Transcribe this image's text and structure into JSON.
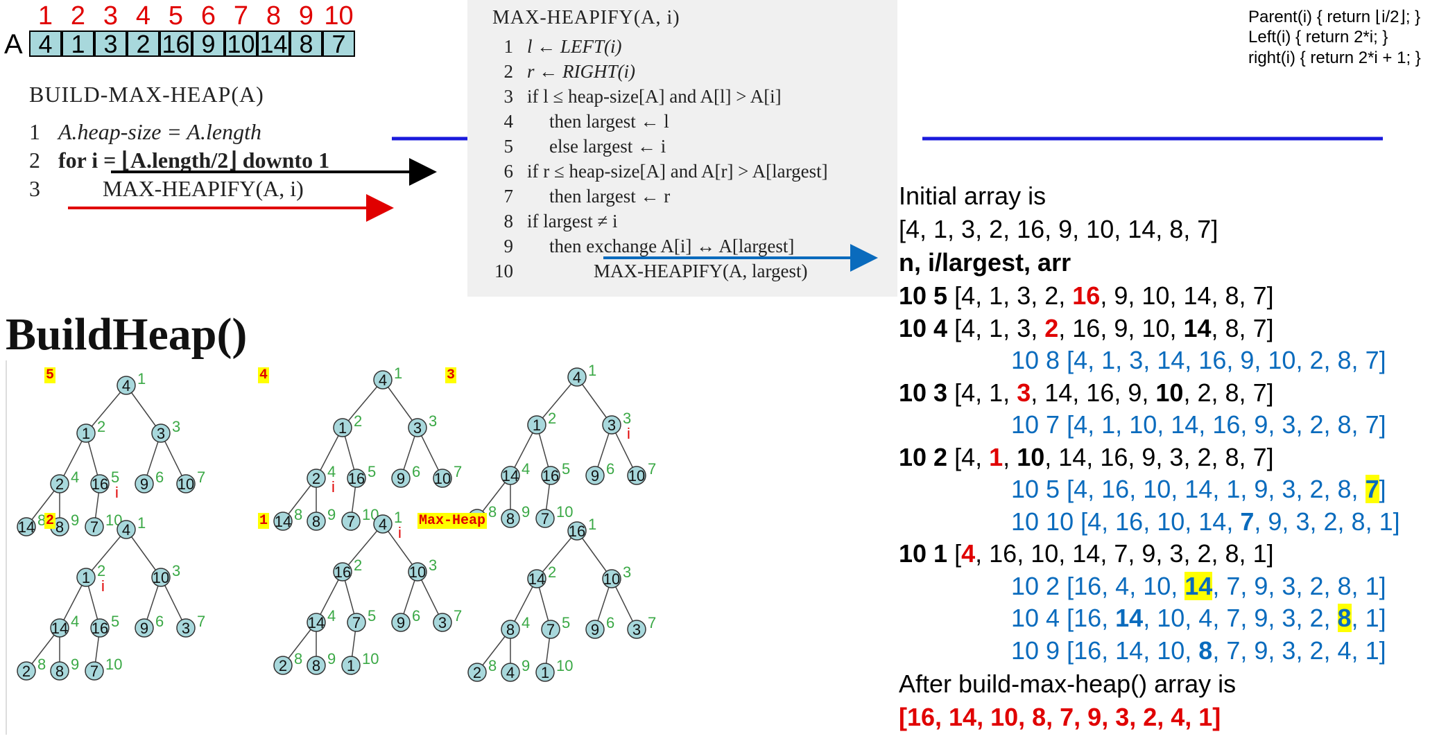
{
  "array": {
    "label": "A",
    "indices": [
      "1",
      "2",
      "3",
      "4",
      "5",
      "6",
      "7",
      "8",
      "9",
      "10"
    ],
    "values": [
      "4",
      "1",
      "3",
      "2",
      "16",
      "9",
      "10",
      "14",
      "8",
      "7"
    ]
  },
  "build_max_heap": {
    "title": "BUILD-MAX-HEAP(A)",
    "lines": [
      {
        "num": "1",
        "text": "A.heap-size = A.length"
      },
      {
        "num": "2",
        "text": "for i = ⌊A.length/2⌋ downto 1"
      },
      {
        "num": "3",
        "text": "MAX-HEAPIFY(A, i)"
      }
    ]
  },
  "max_heapify": {
    "title": "MAX-HEAPIFY(A, i)",
    "lines": [
      {
        "num": "1",
        "text": "l ← LEFT(i)"
      },
      {
        "num": "2",
        "text": "r ← RIGHT(i)"
      },
      {
        "num": "3",
        "text": "if l ≤ heap-size[A] and A[l] > A[i]"
      },
      {
        "num": "4",
        "text": "then largest ← l"
      },
      {
        "num": "5",
        "text": "else  largest ← i"
      },
      {
        "num": "6",
        "text": "if r ≤ heap-size[A] and A[r] > A[largest]"
      },
      {
        "num": "7",
        "text": "then largest ← r"
      },
      {
        "num": "8",
        "text": "if largest ≠ i"
      },
      {
        "num": "9",
        "text": "then exchange A[i] ↔ A[largest]"
      },
      {
        "num": "10",
        "text": "MAX-HEAPIFY(A, largest)"
      }
    ]
  },
  "defs": [
    "Parent(i) { return ⌊i/2⌋; }",
    "Left(i) { return 2*i; }",
    "right(i) { return 2*i + 1; }"
  ],
  "buildheap_title": "BuildHeap()",
  "trace": {
    "intro": "Initial array is",
    "initial": "[4, 1, 3, 2, 16, 9, 10, 14, 8, 7]",
    "header": "n, i/largest, arr",
    "outro": "After build-max-heap() array is",
    "result": "[16, 14, 10, 8, 7, 9, 3, 2, 4, 1]",
    "rows": [
      {
        "n": "10",
        "i": "5",
        "arr": "[4, 1, 3, 2, 16, 9, 10, 14, 8, 7]",
        "indent": false
      },
      {
        "n": "10",
        "i": "4",
        "arr": "[4, 1, 3, 2, 16, 9, 10, 14, 8, 7]",
        "indent": false
      },
      {
        "n": "10",
        "i": "8",
        "arr": "[4, 1, 3, 14, 16, 9, 10, 2, 8, 7]",
        "indent": true
      },
      {
        "n": "10",
        "i": "3",
        "arr": "[4, 1, 3, 14, 16, 9, 10, 2, 8, 7]",
        "indent": false
      },
      {
        "n": "10",
        "i": "7",
        "arr": "[4, 1, 10, 14, 16, 9, 3, 2, 8, 7]",
        "indent": true
      },
      {
        "n": "10",
        "i": "2",
        "arr": "[4, 1, 10, 14, 16, 9, 3, 2, 8, 7]",
        "indent": false
      },
      {
        "n": "10",
        "i": "5",
        "arr": "[4, 16, 10, 14, 1, 9, 3, 2, 8, 7]",
        "indent": true
      },
      {
        "n": "10",
        "i": "10",
        "arr": "[4, 16, 10, 14, 7, 9, 3, 2, 8, 1]",
        "indent": true
      },
      {
        "n": "10",
        "i": "1",
        "arr": "[4, 16, 10, 14, 7, 9, 3, 2, 8, 1]",
        "indent": false
      },
      {
        "n": "10",
        "i": "2",
        "arr": "[16, 4, 10, 14, 7, 9, 3, 2, 8, 1]",
        "indent": true
      },
      {
        "n": "10",
        "i": "4",
        "arr": "[16, 14, 10, 4, 7, 9, 3, 2, 8, 1]",
        "indent": true
      },
      {
        "n": "10",
        "i": "9",
        "arr": "[16, 14, 10, 8, 7, 9, 3, 2, 4, 1]",
        "indent": true
      }
    ]
  },
  "trees": [
    {
      "tag": "5",
      "values": [
        "4",
        "1",
        "3",
        "2",
        "16",
        "9",
        "10",
        "14",
        "8",
        "7"
      ],
      "i_marker": 5
    },
    {
      "tag": "4",
      "values": [
        "4",
        "1",
        "3",
        "2",
        "16",
        "9",
        "10",
        "14",
        "8",
        "7"
      ],
      "i_marker": 4
    },
    {
      "tag": "3",
      "values": [
        "4",
        "1",
        "3",
        "14",
        "16",
        "9",
        "10",
        "2",
        "8",
        "7"
      ],
      "i_marker": 3
    },
    {
      "tag": "2",
      "values": [
        "4",
        "1",
        "10",
        "14",
        "16",
        "9",
        "3",
        "2",
        "8",
        "7"
      ],
      "i_marker": 2
    },
    {
      "tag": "1",
      "values": [
        "4",
        "16",
        "10",
        "14",
        "7",
        "9",
        "3",
        "2",
        "8",
        "1"
      ],
      "i_marker": 1
    },
    {
      "tag": "Max-Heap",
      "values": [
        "16",
        "14",
        "10",
        "8",
        "7",
        "9",
        "3",
        "2",
        "4",
        "1"
      ],
      "i_marker": 0
    }
  ],
  "marker_letter": "i",
  "colors": {
    "array_cell": "#a8d8dc",
    "node_fill": "#a8d8dc",
    "index_green": "#3aa845",
    "red": "#e00000",
    "blue": "#0a6bbd",
    "highlight": "#ffff00"
  }
}
